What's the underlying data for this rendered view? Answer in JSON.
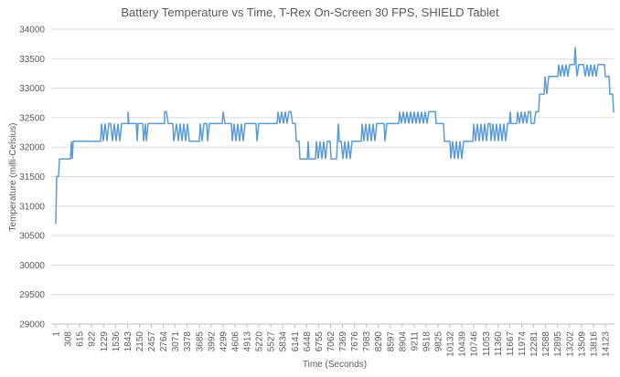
{
  "chart_data": {
    "type": "line",
    "title": "Battery Temperature vs Time, T-Rex On-Screen 30 FPS, SHIELD Tablet",
    "x_label": "Time (Seconds)",
    "y_label": "Temperature (milli-Celsius)",
    "xlim": [
      1,
      14359
    ],
    "ylim": [
      29000,
      34000
    ],
    "yticks": [
      29000,
      29500,
      30000,
      30500,
      31000,
      31500,
      32000,
      32500,
      33000,
      33500,
      34000
    ],
    "xticks": [
      1,
      308,
      615,
      922,
      1229,
      1536,
      1843,
      2150,
      2457,
      2764,
      3071,
      3378,
      3685,
      3992,
      4299,
      4606,
      4913,
      5220,
      5527,
      5834,
      6141,
      6448,
      6755,
      7062,
      7369,
      7676,
      7983,
      8290,
      8597,
      8904,
      9211,
      9518,
      9825,
      10132,
      10439,
      10746,
      11053,
      11360,
      11667,
      11974,
      12281,
      12588,
      12895,
      13202,
      13509,
      13816,
      14123
    ],
    "grid": true,
    "series": [
      {
        "color": "#5b9bd5",
        "x": [
          1,
          25,
          72,
          95,
          377,
          400,
          424,
          447,
          1152,
          1176,
          1223,
          1270,
          1317,
          1364,
          1411,
          1458,
          1505,
          1552,
          1599,
          1646,
          1693,
          1740,
          1857,
          1857,
          1881,
          2069,
          2092,
          2116,
          2233,
          2257,
          2304,
          2328,
          2374,
          2797,
          2797,
          2844,
          2891,
          3009,
          3032,
          3103,
          3150,
          3197,
          3244,
          3291,
          3338,
          3385,
          3432,
          3479,
          3690,
          3714,
          3761,
          3808,
          3879,
          3902,
          3949,
          4278,
          4301,
          4349,
          4513,
          4536,
          4583,
          4630,
          4677,
          4724,
          4771,
          4818,
          4865,
          5147,
          5171,
          5218,
          5688,
          5712,
          5759,
          5806,
          5853,
          5900,
          5947,
          5994,
          6041,
          6088,
          6158,
          6182,
          6252,
          6276,
          6464,
          6487,
          6511,
          6675,
          6699,
          6746,
          6793,
          6840,
          6887,
          6934,
          6981,
          7051,
          7075,
          7216,
          7239,
          7263,
          7286,
          7333,
          7380,
          7427,
          7474,
          7521,
          7568,
          7615,
          7850,
          7874,
          7921,
          7968,
          8015,
          8062,
          8109,
          8156,
          8203,
          8250,
          8438,
          8461,
          8508,
          8814,
          8837,
          8884,
          8931,
          8978,
          9025,
          9072,
          9119,
          9166,
          9213,
          9260,
          9307,
          9354,
          9401,
          9448,
          9495,
          9542,
          9589,
          9754,
          9777,
          9965,
          9989,
          10130,
          10153,
          10200,
          10247,
          10294,
          10341,
          10388,
          10435,
          10482,
          10717,
          10741,
          10788,
          10835,
          10882,
          10929,
          10976,
          11023,
          11070,
          11117,
          11164,
          11187,
          11234,
          11281,
          11328,
          11375,
          11422,
          11469,
          11516,
          11563,
          11610,
          11657,
          11681,
          11704,
          11845,
          11869,
          11916,
          11963,
          12010,
          12057,
          12104,
          12151,
          12198,
          12221,
          12292,
          12339,
          12409,
          12433,
          12550,
          12574,
          12621,
          12668,
          12903,
          12926,
          12973,
          13020,
          13067,
          13114,
          13161,
          13208,
          13326,
          13349,
          13373,
          13396,
          13443,
          13561,
          13608,
          13655,
          13702,
          13749,
          13796,
          13843,
          13890,
          13937,
          14101,
          14125,
          14219,
          14242,
          14313,
          14336,
          14359
        ],
        "values": [
          30700,
          31500,
          31500,
          31800,
          31800,
          32100,
          31800,
          32100,
          32100,
          32400,
          32100,
          32400,
          32100,
          32400,
          32400,
          32100,
          32400,
          32100,
          32400,
          32100,
          32400,
          32400,
          32400,
          32600,
          32400,
          32400,
          32100,
          32400,
          32400,
          32100,
          32400,
          32100,
          32400,
          32400,
          32600,
          32600,
          32400,
          32400,
          32100,
          32400,
          32100,
          32400,
          32100,
          32400,
          32100,
          32400,
          32100,
          32100,
          32100,
          32400,
          32100,
          32400,
          32400,
          32100,
          32400,
          32400,
          32600,
          32400,
          32400,
          32100,
          32400,
          32100,
          32400,
          32100,
          32400,
          32100,
          32400,
          32400,
          32100,
          32400,
          32400,
          32600,
          32400,
          32600,
          32400,
          32600,
          32400,
          32600,
          32600,
          32400,
          32400,
          32100,
          32100,
          31800,
          31800,
          32100,
          31800,
          31800,
          32100,
          31800,
          32100,
          31800,
          32100,
          31800,
          32100,
          32100,
          31800,
          31800,
          32100,
          32400,
          32100,
          32100,
          31800,
          32100,
          31800,
          32100,
          31800,
          32100,
          32100,
          32400,
          32100,
          32400,
          32100,
          32400,
          32100,
          32400,
          32100,
          32400,
          32400,
          32100,
          32400,
          32400,
          32600,
          32400,
          32600,
          32400,
          32600,
          32400,
          32600,
          32400,
          32600,
          32400,
          32600,
          32400,
          32600,
          32400,
          32600,
          32400,
          32600,
          32600,
          32400,
          32400,
          32100,
          32100,
          31800,
          32100,
          31800,
          32100,
          31800,
          32100,
          31800,
          32100,
          32100,
          32400,
          32100,
          32400,
          32100,
          32400,
          32100,
          32400,
          32100,
          32400,
          32400,
          32100,
          32400,
          32100,
          32400,
          32100,
          32400,
          32100,
          32400,
          32100,
          32400,
          32400,
          32600,
          32400,
          32400,
          32600,
          32400,
          32600,
          32400,
          32600,
          32400,
          32600,
          32600,
          32400,
          32400,
          32600,
          32600,
          32900,
          32900,
          33200,
          32900,
          33200,
          33200,
          33400,
          33200,
          33400,
          33200,
          33400,
          33200,
          33400,
          33400,
          33700,
          33400,
          33200,
          33400,
          33400,
          33200,
          33400,
          33200,
          33400,
          33200,
          33400,
          33200,
          33400,
          33400,
          33200,
          33200,
          32900,
          32900,
          32600,
          32600
        ]
      }
    ]
  }
}
